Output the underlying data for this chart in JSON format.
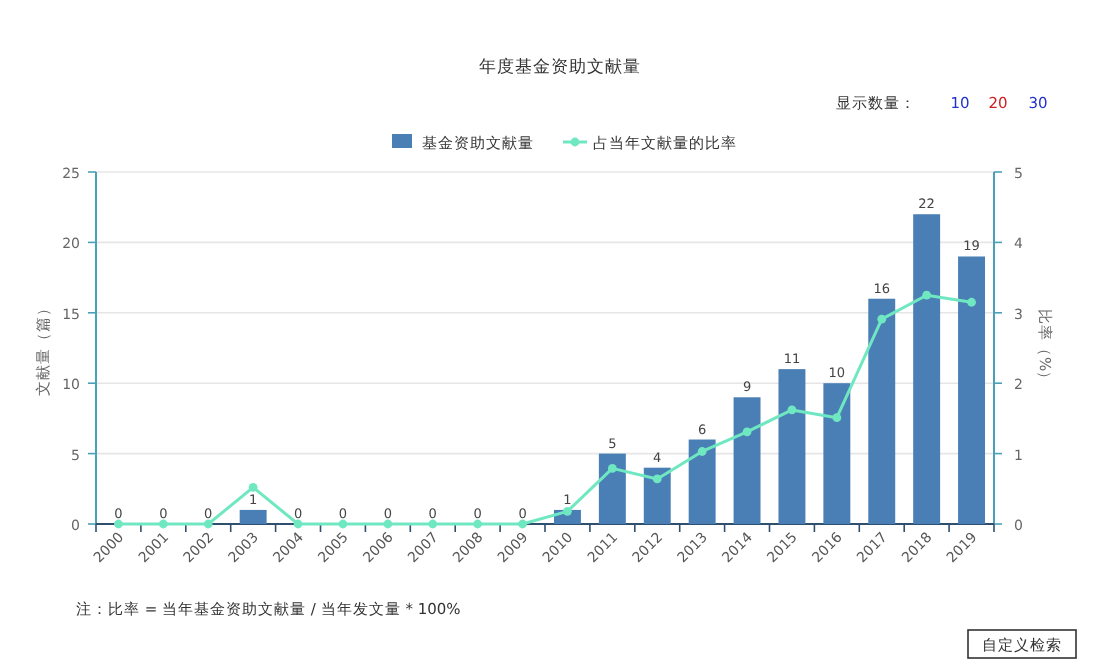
{
  "chart_data": {
    "type": "bar",
    "title": "年度基金资助文献量",
    "categories": [
      "2000",
      "2001",
      "2002",
      "2003",
      "2004",
      "2005",
      "2006",
      "2007",
      "2008",
      "2009",
      "2010",
      "2011",
      "2012",
      "2013",
      "2014",
      "2015",
      "2016",
      "2017",
      "2018",
      "2019"
    ],
    "series": [
      {
        "name": "基金资助文献量",
        "color": "#4a7fb5",
        "values": [
          0,
          0,
          0,
          1,
          0,
          0,
          0,
          0,
          0,
          0,
          1,
          5,
          4,
          6,
          9,
          11,
          10,
          16,
          22,
          19
        ],
        "value_labels": [
          "0",
          "0",
          "0",
          "1",
          "0",
          "0",
          "0",
          "0",
          "0",
          "0",
          "1",
          "5",
          "4",
          "6",
          "9",
          "11",
          "10",
          "16",
          "22",
          "19"
        ]
      },
      {
        "name": "占当年文献量的比率",
        "type": "line",
        "axis": "y2",
        "color": "#6fe8c2",
        "marker": "circle",
        "values": [
          0,
          0,
          0,
          0.52,
          0,
          0,
          0,
          0,
          0,
          0,
          0.18,
          0.79,
          0.64,
          1.03,
          1.31,
          1.62,
          1.51,
          2.91,
          3.25,
          3.15
        ]
      }
    ],
    "ylabel": "文献量（篇）",
    "y2label": "比率（%）",
    "ylim": [
      0,
      25
    ],
    "yticks": [
      0,
      5,
      10,
      15,
      20,
      25
    ],
    "y2lim": [
      0,
      5
    ],
    "y2ticks": [
      0,
      1,
      2,
      3,
      4,
      5
    ],
    "grid": "y",
    "legend": "top",
    "annotations": [
      "显示数量：",
      "10",
      "20",
      "30",
      "注：比率 = 当年基金资助文献量 / 当年发文量 * 100%",
      "自定义检索"
    ]
  }
}
